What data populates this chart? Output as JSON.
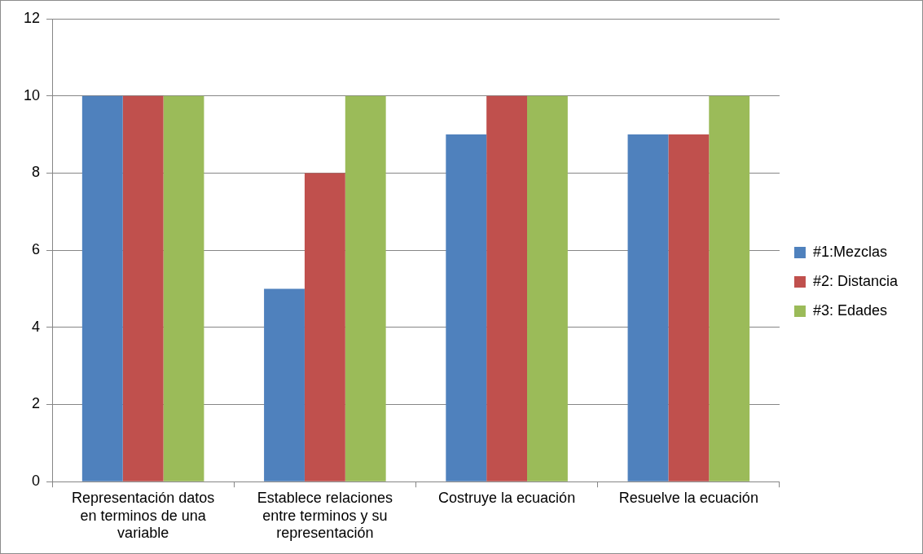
{
  "chart_data": {
    "type": "bar",
    "categories": [
      "Representación datos en terminos de una variable",
      "Establece relaciones entre terminos y su representación",
      "Costruye la ecuación",
      "Resuelve la ecuación"
    ],
    "series": [
      {
        "name": "#1:Mezclas",
        "color": "#4f81bd",
        "values": [
          10,
          5,
          9,
          9
        ]
      },
      {
        "name": "#2: Distancia",
        "color": "#c0504d",
        "values": [
          10,
          8,
          10,
          9
        ]
      },
      {
        "name": "#3: Edades",
        "color": "#9bbb59",
        "values": [
          10,
          10,
          10,
          10
        ]
      }
    ],
    "ylim": [
      0,
      12
    ],
    "yticks": [
      0,
      2,
      4,
      6,
      8,
      10,
      12
    ],
    "grid": "y",
    "legend": "right"
  }
}
